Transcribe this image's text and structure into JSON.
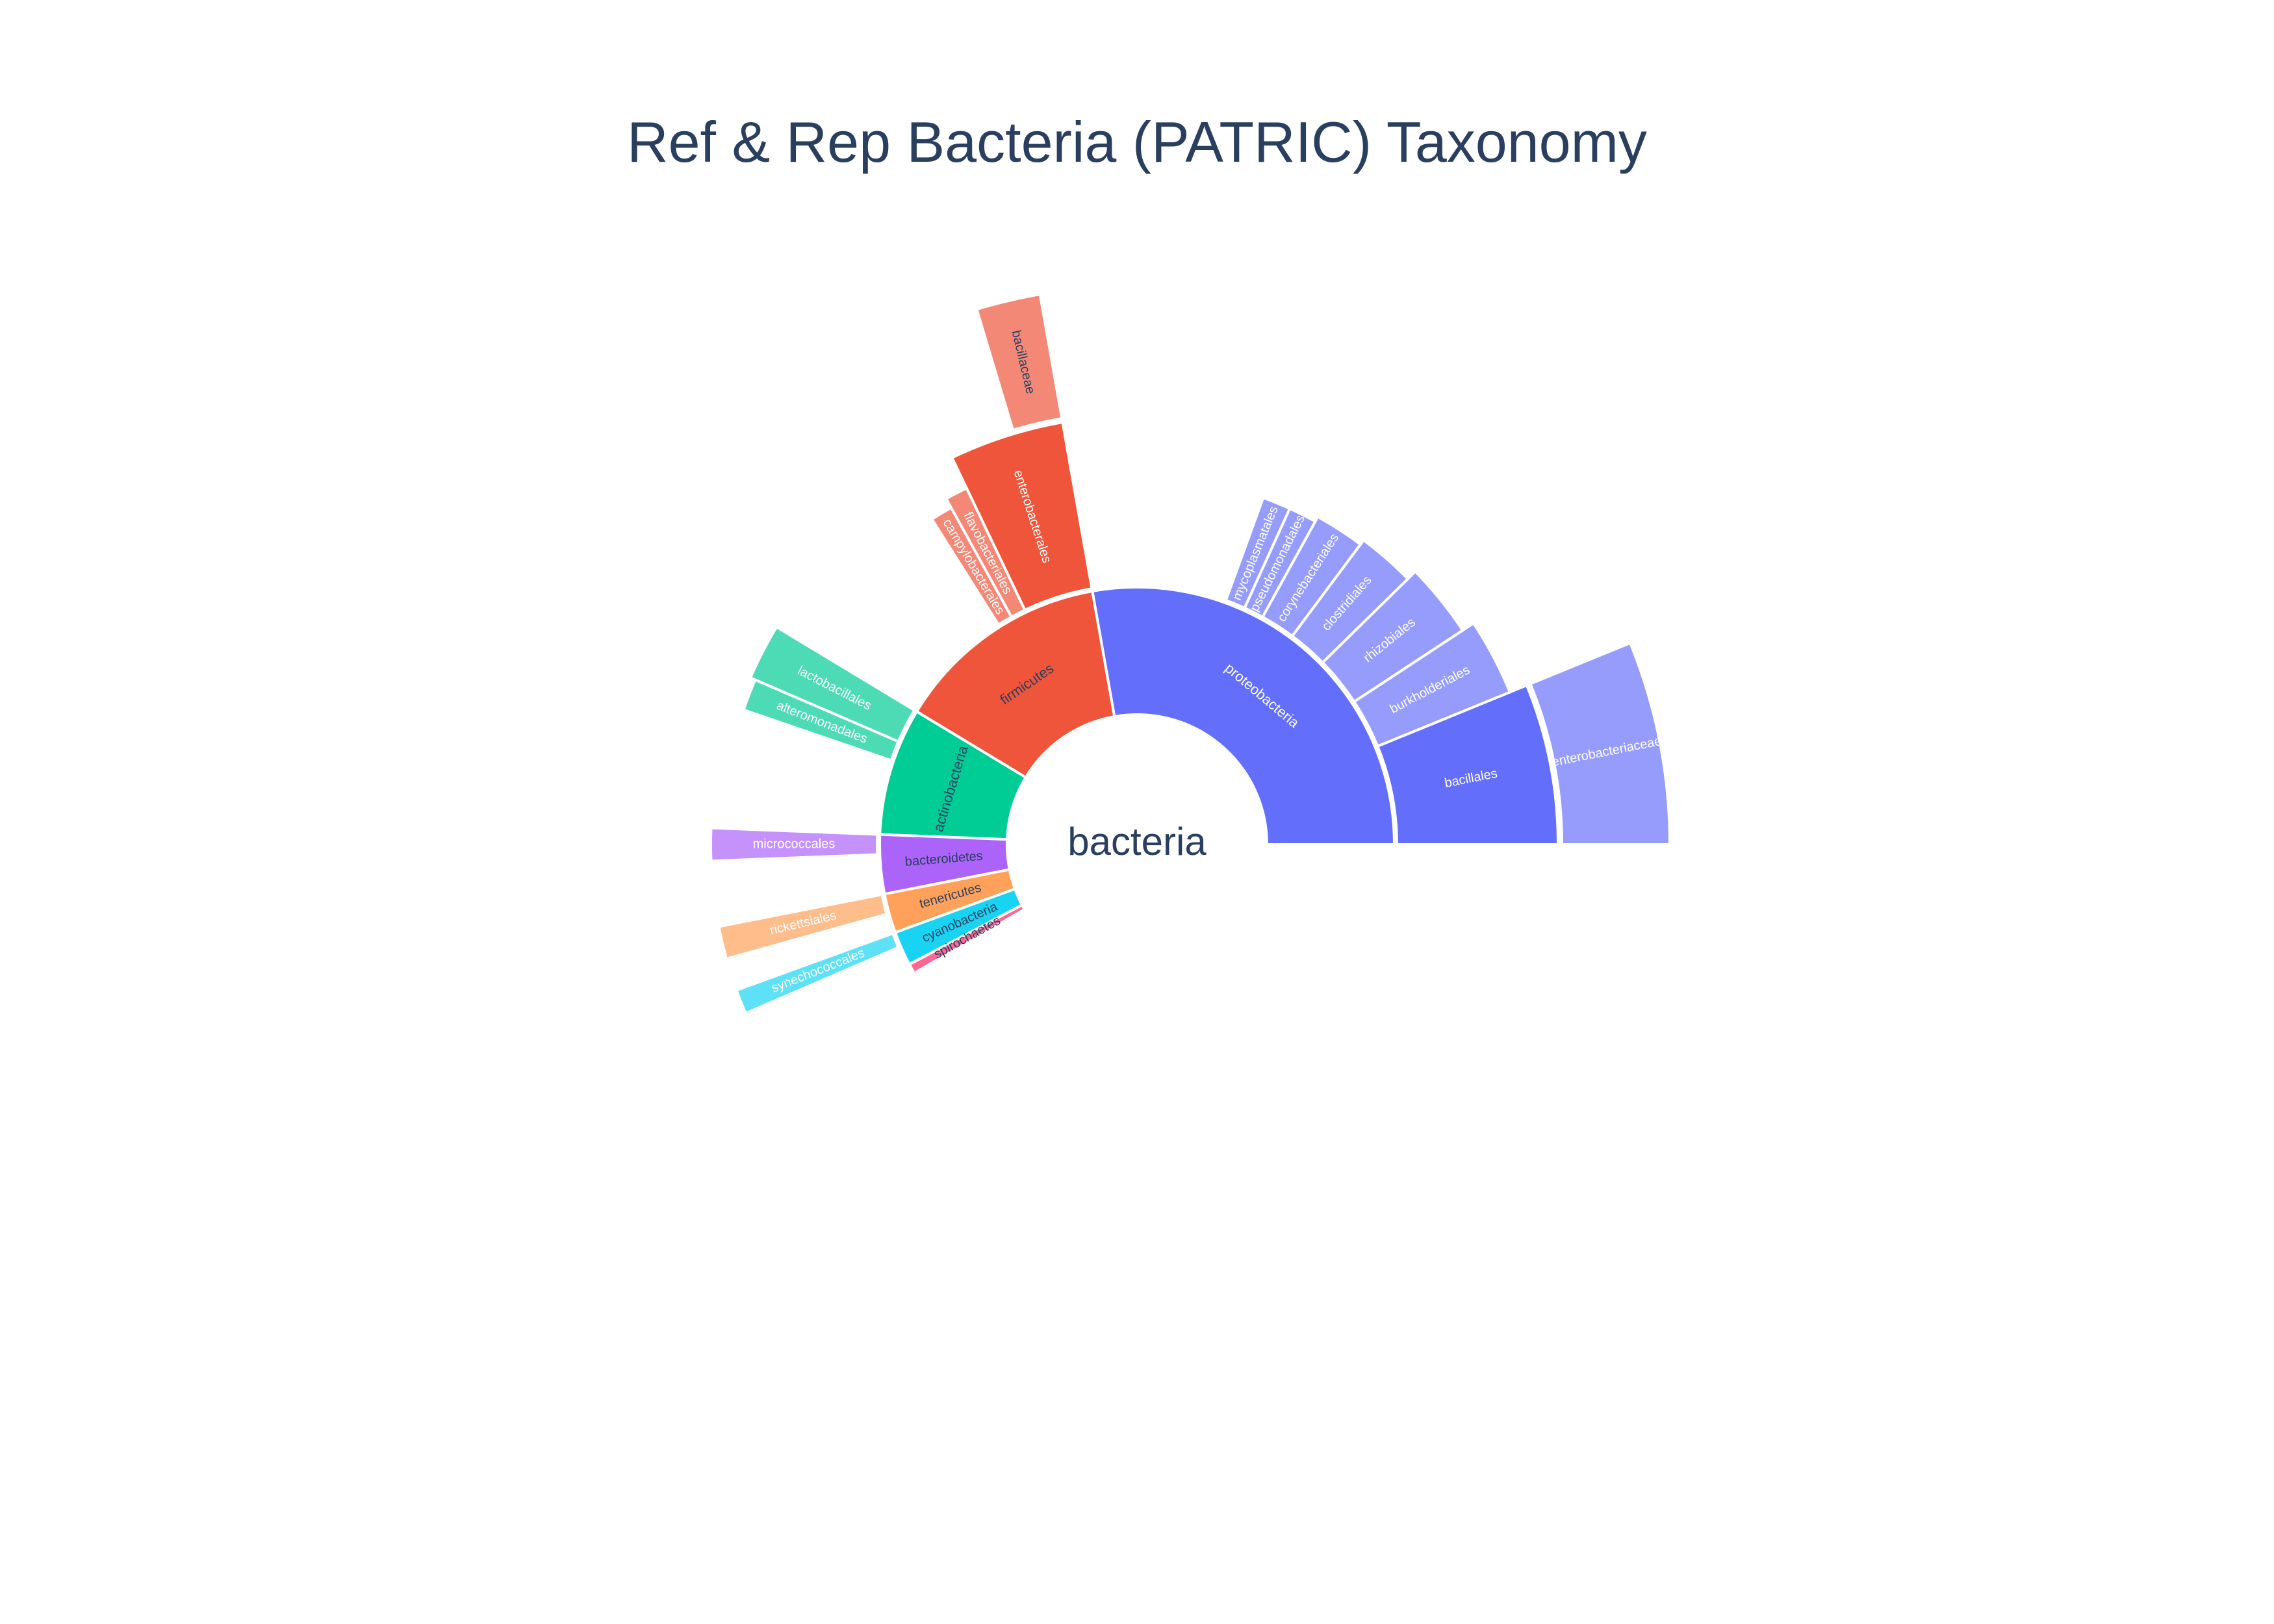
{
  "chart_data": {
    "type": "sunburst",
    "title": "Ref & Rep Bacteria (PATRIC) Taxonomy",
    "root": {
      "label": "bacteria",
      "value": 0
    },
    "children": [
      {
        "label": "proteobacteria",
        "value": 45,
        "color": "#636efa",
        "textColor": "#ffffff",
        "children": [
          {
            "label": "bacillales",
            "value": 10,
            "outer": 1.62,
            "color": "#636efa",
            "children": [
              {
                "label": "enterobacteriaceae",
                "value": 10,
                "outer": 2.05,
                "color": "#969cfb",
                "textColor": "#ffffff"
              }
            ]
          },
          {
            "label": "burkholderiales",
            "value": 5,
            "outer": 1.55,
            "color": "#969cfb"
          },
          {
            "label": "rhizobiales",
            "value": 5,
            "outer": 1.5,
            "color": "#969cfb"
          },
          {
            "label": "clostridiales",
            "value": 4,
            "outer": 1.46,
            "color": "#969cfb"
          },
          {
            "label": "corynebacteriales",
            "value": 3.5,
            "outer": 1.44,
            "color": "#969cfb"
          },
          {
            "label": "pseudomonadales",
            "value": 2,
            "outer": 1.42,
            "color": "#969cfb"
          },
          {
            "label": "mycoplasmatales",
            "value": 2,
            "outer": 1.42,
            "color": "#969cfb"
          }
        ]
      },
      {
        "label": "firmicutes",
        "value": 22,
        "color": "#ef553b",
        "textColor": "#2a3f5f",
        "children": [
          {
            "label": "enterobacterales",
            "value": 7,
            "outer": 1.65,
            "color": "#ef553b",
            "children": [
              {
                "label": "bacillaceae",
                "value": 3,
                "outer": 2.15,
                "color": "#f38876",
                "textColor": "#2a3f5f"
              }
            ]
          },
          {
            "label": "flavobacteriales",
            "value": 1.5,
            "outer": 1.52,
            "color": "#f38876"
          },
          {
            "label": "campylobacterales",
            "value": 1.5,
            "outer": 1.48,
            "color": "#f38876"
          }
        ]
      },
      {
        "label": "actinobacteria",
        "value": 13,
        "color": "#00cc96",
        "textColor": "#2a3f5f",
        "children": [
          {
            "label": "lactobacillales",
            "value": 3.5,
            "outer": 1.62,
            "color": "#4ddbb6"
          },
          {
            "label": "alteromonadales",
            "value": 2,
            "outer": 1.6,
            "color": "#4ddbb6"
          }
        ]
      },
      {
        "label": "bacteroidetes",
        "value": 6,
        "color": "#ab63fa",
        "textColor": "#2a3f5f",
        "children": [
          {
            "label": "micrococcales",
            "value": 2,
            "outer": 1.64,
            "color": "#c592fb"
          }
        ]
      },
      {
        "label": "tenericutes",
        "value": 4,
        "color": "#ffa15a",
        "textColor": "#2a3f5f",
        "children": [
          {
            "label": "rickettsiales",
            "value": 2,
            "outer": 1.64,
            "color": "#ffbd8c"
          }
        ]
      },
      {
        "label": "cyanobacteria",
        "value": 3.5,
        "color": "#19d3f3",
        "textColor": "#2a3f5f",
        "children": [
          {
            "label": "synechococcales",
            "value": 1.5,
            "outer": 1.64,
            "color": "#5ee0f7"
          }
        ]
      },
      {
        "label": "spirochaetes",
        "value": 1,
        "color": "#ff6692",
        "textColor": "#2a3f5f",
        "children": []
      }
    ]
  }
}
